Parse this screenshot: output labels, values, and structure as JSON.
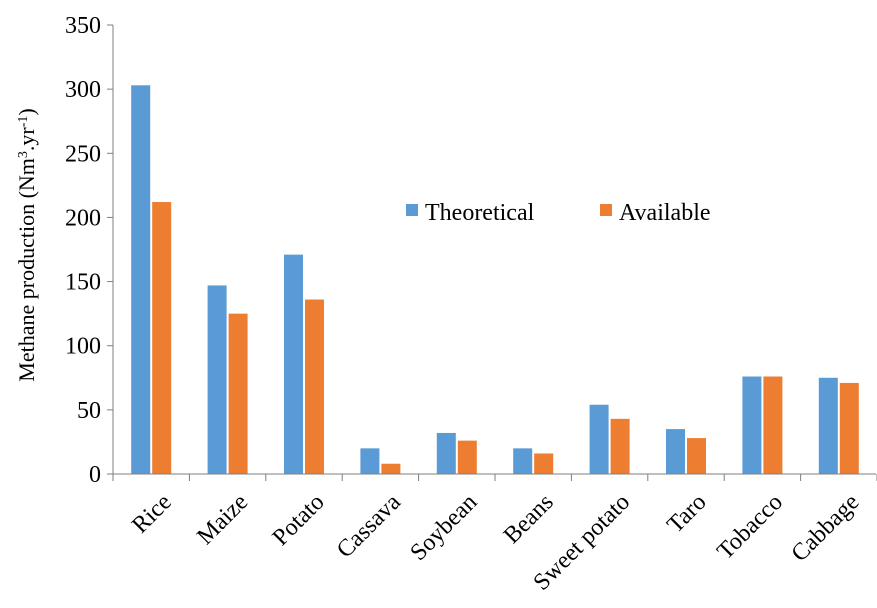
{
  "chart_data": {
    "type": "bar",
    "title": "",
    "xlabel": "",
    "ylabel": "Methane production (Nm",
    "ylabel_unit_mid": ".yr",
    "ylabel_unit_end": ")",
    "ylabel_sup1": "3",
    "ylabel_sup2": "-1",
    "ylim": [
      0,
      350
    ],
    "yticks": [
      0,
      50,
      100,
      150,
      200,
      250,
      300,
      350
    ],
    "legend_position": "center-right",
    "grid": false,
    "categories": [
      "Rice",
      "Maize",
      "Potato",
      "Cassava",
      "Soybean",
      "Beans",
      "Sweet potato",
      "Taro",
      "Tobacco",
      "Cabbage"
    ],
    "series": [
      {
        "name": "Theoretical",
        "color": "#5b9bd5",
        "values": [
          303,
          147,
          171,
          20,
          32,
          20,
          54,
          35,
          76,
          75
        ]
      },
      {
        "name": "Available",
        "color": "#ed7d31",
        "values": [
          212,
          125,
          136,
          8,
          26,
          16,
          43,
          28,
          76,
          71
        ]
      }
    ]
  }
}
